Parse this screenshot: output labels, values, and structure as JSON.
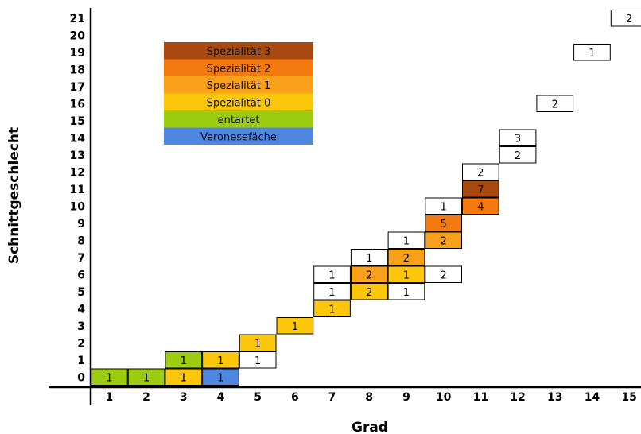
{
  "chart_data": {
    "type": "table",
    "xlabel": "Grad",
    "ylabel": "Schnittgeschlecht",
    "x_ticks": [
      "1",
      "2",
      "3",
      "4",
      "5",
      "6",
      "7",
      "8",
      "9",
      "10",
      "11",
      "12",
      "13",
      "14",
      "15"
    ],
    "y_ticks": [
      "0",
      "1",
      "2",
      "3",
      "4",
      "5",
      "6",
      "7",
      "8",
      "9",
      "10",
      "11",
      "12",
      "13",
      "14",
      "15",
      "16",
      "17",
      "18",
      "19",
      "20",
      "21"
    ],
    "xlim": [
      1,
      15
    ],
    "ylim": [
      0,
      21
    ],
    "legend": [
      {
        "label": "Spezialität 3",
        "category": "s3",
        "color": "#a84a10"
      },
      {
        "label": "Spezialität 2",
        "category": "s2",
        "color": "#f47a10"
      },
      {
        "label": "Spezialität 1",
        "category": "s1",
        "color": "#faa11b"
      },
      {
        "label": "Spezialität 0",
        "category": "s0",
        "color": "#fcc60a"
      },
      {
        "label": "entartet",
        "category": "ent",
        "color": "#9ccc10"
      },
      {
        "label": "Veronesefäche",
        "category": "ver",
        "color": "#4f86e0"
      }
    ],
    "category_colors": {
      "none": "#ffffff"
    },
    "cells": [
      {
        "x": 1,
        "y": 0,
        "value": "1",
        "category": "ent"
      },
      {
        "x": 2,
        "y": 0,
        "value": "1",
        "category": "ent"
      },
      {
        "x": 3,
        "y": 0,
        "value": "1",
        "category": "s0"
      },
      {
        "x": 4,
        "y": 0,
        "value": "1",
        "category": "ver"
      },
      {
        "x": 3,
        "y": 1,
        "value": "1",
        "category": "ent"
      },
      {
        "x": 4,
        "y": 1,
        "value": "1",
        "category": "s0"
      },
      {
        "x": 5,
        "y": 1,
        "value": "1",
        "category": "none"
      },
      {
        "x": 5,
        "y": 2,
        "value": "1",
        "category": "s0"
      },
      {
        "x": 6,
        "y": 3,
        "value": "1",
        "category": "s0"
      },
      {
        "x": 7,
        "y": 4,
        "value": "1",
        "category": "s0"
      },
      {
        "x": 7,
        "y": 5,
        "value": "1",
        "category": "none"
      },
      {
        "x": 8,
        "y": 5,
        "value": "2",
        "category": "s0"
      },
      {
        "x": 9,
        "y": 5,
        "value": "1",
        "category": "none"
      },
      {
        "x": 7,
        "y": 6,
        "value": "1",
        "category": "none"
      },
      {
        "x": 8,
        "y": 6,
        "value": "2",
        "category": "s1"
      },
      {
        "x": 9,
        "y": 6,
        "value": "1",
        "category": "s0"
      },
      {
        "x": 10,
        "y": 6,
        "value": "2",
        "category": "none"
      },
      {
        "x": 8,
        "y": 7,
        "value": "1",
        "category": "none"
      },
      {
        "x": 9,
        "y": 7,
        "value": "2",
        "category": "s1"
      },
      {
        "x": 9,
        "y": 8,
        "value": "1",
        "category": "none"
      },
      {
        "x": 10,
        "y": 8,
        "value": "2",
        "category": "s1"
      },
      {
        "x": 10,
        "y": 9,
        "value": "5",
        "category": "s2"
      },
      {
        "x": 10,
        "y": 10,
        "value": "1",
        "category": "none"
      },
      {
        "x": 11,
        "y": 10,
        "value": "4",
        "category": "s2"
      },
      {
        "x": 11,
        "y": 11,
        "value": "7",
        "category": "s3"
      },
      {
        "x": 11,
        "y": 12,
        "value": "2",
        "category": "none"
      },
      {
        "x": 12,
        "y": 13,
        "value": "2",
        "category": "none"
      },
      {
        "x": 12,
        "y": 14,
        "value": "3",
        "category": "none"
      },
      {
        "x": 13,
        "y": 16,
        "value": "2",
        "category": "none"
      },
      {
        "x": 14,
        "y": 19,
        "value": "1",
        "category": "none"
      },
      {
        "x": 15,
        "y": 21,
        "value": "2",
        "category": "none"
      }
    ]
  }
}
